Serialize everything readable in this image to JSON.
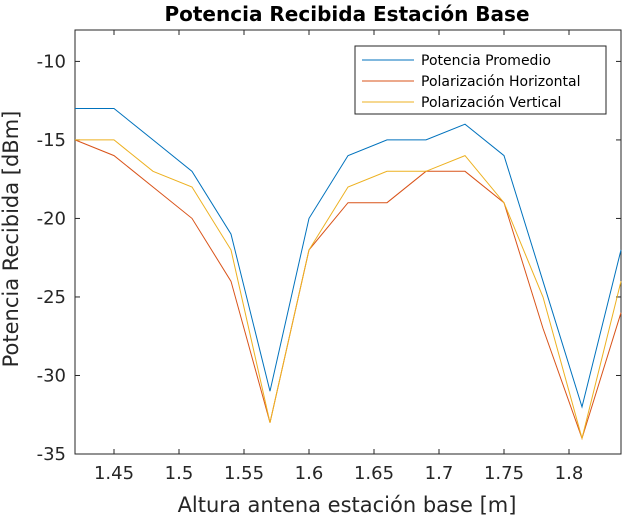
{
  "chart_data": {
    "type": "line",
    "title": "Potencia Recibida Estación Base",
    "xlabel": "Altura antena estación base [m]",
    "ylabel": "Potencia Recibida [dBm]",
    "xlim": [
      1.42,
      1.84
    ],
    "ylim": [
      -35,
      -8
    ],
    "xticks": [
      1.45,
      1.5,
      1.55,
      1.6,
      1.65,
      1.7,
      1.75,
      1.8
    ],
    "xtick_labels": [
      "1.45",
      "1.5",
      "1.55",
      "1.6",
      "1.65",
      "1.7",
      "1.75",
      "1.8"
    ],
    "yticks": [
      -35,
      -30,
      -25,
      -20,
      -15,
      -10
    ],
    "ytick_labels": [
      "-35",
      "-30",
      "-25",
      "-20",
      "-15",
      "-10"
    ],
    "grid": false,
    "legend_position": "top-right",
    "x": [
      1.42,
      1.45,
      1.48,
      1.51,
      1.54,
      1.57,
      1.6,
      1.63,
      1.66,
      1.69,
      1.72,
      1.75,
      1.78,
      1.81,
      1.84
    ],
    "series": [
      {
        "name": "Potencia Promedio",
        "color": "#0072bd",
        "values": [
          -13,
          -13,
          -15,
          -17,
          -21,
          -31,
          -20,
          -16,
          -15,
          -15,
          -14,
          -16,
          -24,
          -32,
          -22
        ]
      },
      {
        "name": "Polarización Horizontal",
        "color": "#d95319",
        "values": [
          -15,
          -16,
          -18,
          -20,
          -24,
          -33,
          -22,
          -19,
          -19,
          -17,
          -17,
          -19,
          -27,
          -34,
          -26
        ]
      },
      {
        "name": "Polarización Vertical",
        "color": "#edb120",
        "values": [
          -15,
          -15,
          -17,
          -18,
          -22,
          -33,
          -22,
          -18,
          -17,
          -17,
          -16,
          -19,
          -25,
          -34,
          -24
        ]
      }
    ]
  }
}
